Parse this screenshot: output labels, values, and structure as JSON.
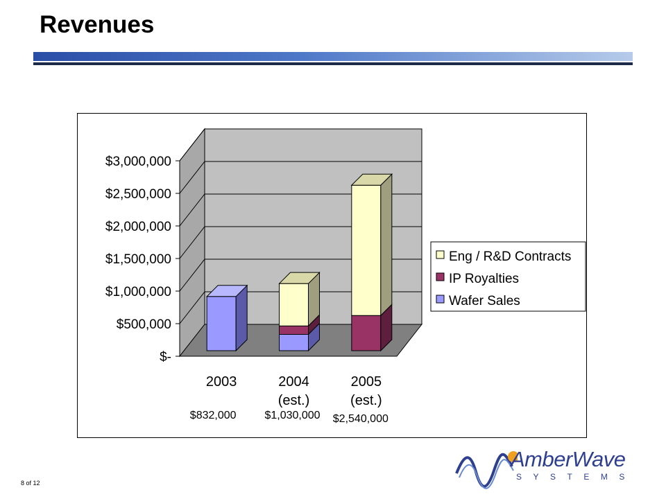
{
  "slide": {
    "title": "Revenues",
    "page_label": "8 of 12"
  },
  "logo": {
    "word": "AmberWave",
    "sub": "SYSTEMS",
    "color": "#2f3f8f",
    "accent_color": "#f0a020"
  },
  "chart_data": {
    "type": "bar",
    "stacked": true,
    "three_d": true,
    "categories": [
      "2003",
      "2004\n(est.)",
      "2005\n(est.)"
    ],
    "category_totals": [
      "$832,000",
      "$1,030,000",
      "$2,540,000"
    ],
    "series": [
      {
        "name": "Wafer Sales",
        "values": [
          832000,
          250000,
          0
        ],
        "color": "#9999ff",
        "side": "#5a5aa8",
        "top": "#b8b8ff"
      },
      {
        "name": "IP Royalties",
        "values": [
          0,
          130000,
          540000
        ],
        "color": "#993366",
        "side": "#5e1f3f",
        "top": "#7a2850"
      },
      {
        "name": "Eng / R&D Contracts",
        "values": [
          0,
          650000,
          2000000
        ],
        "color": "#ffffcc",
        "side": "#9f9f7f",
        "top": "#d8d8a8"
      }
    ],
    "y_ticks": [
      "$3,000,000",
      "$2,500,000",
      "$2,000,000",
      "$1,500,000",
      "$1,000,000",
      "$500,000",
      "$-"
    ],
    "ylim": [
      0,
      3000000
    ],
    "grid": true,
    "legend_position": "right",
    "legend_order": [
      "Eng / R&D Contracts",
      "IP Royalties",
      "Wafer Sales"
    ],
    "wall_color": "#c0c0c0",
    "floor_color": "#808080"
  }
}
